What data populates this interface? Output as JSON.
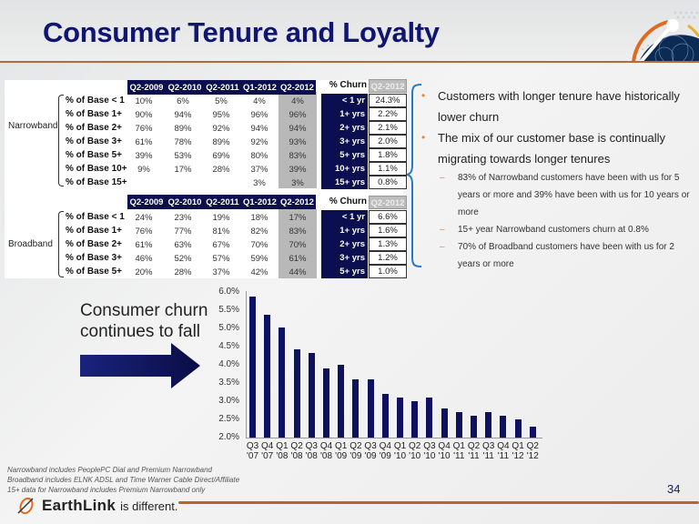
{
  "slide": {
    "title": "Consumer Tenure and Loyalty",
    "page_number": "34"
  },
  "narrowband": {
    "group_label": "Narrowband",
    "columns": [
      "Q2-2009",
      "Q2-2010",
      "Q2-2011",
      "Q1-2012",
      "Q2-2012"
    ],
    "rows": [
      {
        "label": "% of Base < 1",
        "values": [
          "10%",
          "6%",
          "5%",
          "4%",
          "4%"
        ]
      },
      {
        "label": "% of Base 1+",
        "values": [
          "90%",
          "94%",
          "95%",
          "96%",
          "96%"
        ]
      },
      {
        "label": "% of Base 2+",
        "values": [
          "76%",
          "89%",
          "92%",
          "94%",
          "94%"
        ]
      },
      {
        "label": "% of Base 3+",
        "values": [
          "61%",
          "78%",
          "89%",
          "92%",
          "93%"
        ]
      },
      {
        "label": "% of Base 5+",
        "values": [
          "39%",
          "53%",
          "69%",
          "80%",
          "83%"
        ]
      },
      {
        "label": "% of Base 10+",
        "values": [
          "9%",
          "17%",
          "28%",
          "37%",
          "39%"
        ]
      },
      {
        "label": "% of Base 15+",
        "values": [
          "",
          "",
          "",
          "3%",
          "3%"
        ]
      }
    ],
    "churn": {
      "header": "% Churn",
      "period": "Q2-2012",
      "rows": [
        {
          "label": "< 1 yr",
          "value": "24.3%"
        },
        {
          "label": "1+ yrs",
          "value": "2.2%"
        },
        {
          "label": "2+ yrs",
          "value": "2.1%"
        },
        {
          "label": "3+ yrs",
          "value": "2.0%"
        },
        {
          "label": "5+ yrs",
          "value": "1.8%"
        },
        {
          "label": "10+ yrs",
          "value": "1.1%"
        },
        {
          "label": "15+ yrs",
          "value": "0.8%"
        }
      ]
    }
  },
  "broadband": {
    "group_label": "Broadband",
    "columns": [
      "Q2-2009",
      "Q2-2010",
      "Q2-2011",
      "Q1-2012",
      "Q2-2012"
    ],
    "rows": [
      {
        "label": "% of Base < 1",
        "values": [
          "24%",
          "23%",
          "19%",
          "18%",
          "17%"
        ]
      },
      {
        "label": "% of Base 1+",
        "values": [
          "76%",
          "77%",
          "81%",
          "82%",
          "83%"
        ]
      },
      {
        "label": "% of Base 2+",
        "values": [
          "61%",
          "63%",
          "67%",
          "70%",
          "70%"
        ]
      },
      {
        "label": "% of Base 3+",
        "values": [
          "46%",
          "52%",
          "57%",
          "59%",
          "61%"
        ]
      },
      {
        "label": "% of Base 5+",
        "values": [
          "20%",
          "28%",
          "37%",
          "42%",
          "44%"
        ]
      }
    ],
    "churn": {
      "header": "% Churn",
      "period": "Q2-2012",
      "rows": [
        {
          "label": "< 1 yr",
          "value": "6.6%"
        },
        {
          "label": "1+ yrs",
          "value": "1.6%"
        },
        {
          "label": "2+ yrs",
          "value": "1.3%"
        },
        {
          "label": "3+ yrs",
          "value": "1.2%"
        },
        {
          "label": "5+ yrs",
          "value": "1.0%"
        }
      ]
    }
  },
  "bullets": [
    {
      "text": "Customers with longer tenure have historically lower churn",
      "sub": []
    },
    {
      "text": "The mix of our customer base is continually migrating towards longer tenures",
      "sub": [
        "83% of Narrowband customers have been with us for 5 years or more and 39% have been with us for 10 years or more",
        "15+ year Narrowband customers churn at 0.8%",
        "70% of Broadband customers have been with us for 2 years or more"
      ]
    }
  ],
  "callout": {
    "line1": "Consumer churn",
    "line2": "continues to fall"
  },
  "chart_data": {
    "type": "bar",
    "title": "",
    "xlabel": "",
    "ylabel": "",
    "ylim": [
      2.0,
      6.0
    ],
    "y_ticks": [
      "6.0%",
      "5.5%",
      "5.0%",
      "4.5%",
      "4.0%",
      "3.5%",
      "3.0%",
      "2.5%",
      "2.0%"
    ],
    "grid": false,
    "categories": [
      "Q3 '07",
      "Q4 '07",
      "Q1 '08",
      "Q2 '08",
      "Q3 '08",
      "Q4 '08",
      "Q1 '09",
      "Q2 '09",
      "Q3 '09",
      "Q4 '09",
      "Q1 '10",
      "Q2 '10",
      "Q3 '10",
      "Q4 '10",
      "Q1 '11",
      "Q2 '11",
      "Q3 '11",
      "Q4 '11",
      "Q1 '12",
      "Q2 '12"
    ],
    "quarters": [
      "Q3",
      "Q4",
      "Q1",
      "Q2",
      "Q3",
      "Q4",
      "Q1",
      "Q2",
      "Q3",
      "Q4",
      "Q1",
      "Q2",
      "Q3",
      "Q4",
      "Q1",
      "Q2",
      "Q3",
      "Q4",
      "Q1",
      "Q2"
    ],
    "years": [
      "'07",
      "'07",
      "'08",
      "'08",
      "'08",
      "'08",
      "'09",
      "'09",
      "'09",
      "'09",
      "'10",
      "'10",
      "'10",
      "'10",
      "'11",
      "'11",
      "'11",
      "'11",
      "'12",
      "'12"
    ],
    "values": [
      5.85,
      5.35,
      5.0,
      4.4,
      4.3,
      3.9,
      4.0,
      3.6,
      3.6,
      3.2,
      3.1,
      3.0,
      3.1,
      2.8,
      2.7,
      2.6,
      2.7,
      2.6,
      2.5,
      2.3
    ],
    "bar_color": "#0e1160"
  },
  "footnotes": [
    "Narrowband includes PeoplePC Dial and Premium Narrowband",
    "Broadband includes ELNK ADSL and Time Warner Cable Direct/Affiliate",
    "15+ data for Narrowband includes Premium Narrowband only"
  ],
  "brand": {
    "name": "EarthLink",
    "tagline": "is different."
  },
  "colors": {
    "title": "#0f1570",
    "table_header": "#0b0f4f",
    "accent_orange": "#c0622a",
    "bullet_accent": "#e08a3a"
  }
}
